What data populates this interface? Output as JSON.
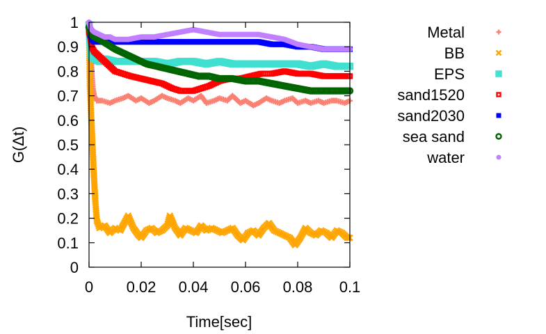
{
  "chart_data": {
    "type": "scatter",
    "title": "",
    "xlabel": "Time[sec]",
    "ylabel": "G(Δt)",
    "xlim": [
      0,
      0.1
    ],
    "ylim": [
      0,
      1
    ],
    "x_ticks": [
      0,
      0.02,
      0.04,
      0.06,
      0.08,
      0.1
    ],
    "x_tick_labels": [
      "0",
      "0.02",
      "0.04",
      "0.06",
      "0.08",
      "0.1"
    ],
    "y_ticks": [
      0,
      0.1,
      0.2,
      0.3,
      0.4,
      0.5,
      0.6,
      0.7,
      0.8,
      0.9,
      1
    ],
    "y_tick_labels": [
      "0",
      "0.1",
      "0.2",
      "0.3",
      "0.4",
      "0.5",
      "0.6",
      "0.7",
      "0.8",
      "0.9",
      "1"
    ],
    "grid": false,
    "legend_position": "outside-right",
    "series": [
      {
        "name": "Metal",
        "color": "#fa8072",
        "marker": "plus",
        "x": [
          0,
          0.0003,
          0.0006,
          0.0009,
          0.0012,
          0.0015,
          0.002,
          0.003,
          0.005,
          0.008,
          0.01,
          0.013,
          0.015,
          0.018,
          0.02,
          0.023,
          0.025,
          0.028,
          0.03,
          0.033,
          0.035,
          0.038,
          0.04,
          0.043,
          0.045,
          0.048,
          0.05,
          0.053,
          0.055,
          0.058,
          0.06,
          0.063,
          0.065,
          0.068,
          0.07,
          0.073,
          0.075,
          0.078,
          0.08,
          0.083,
          0.085,
          0.088,
          0.09,
          0.093,
          0.095,
          0.098,
          0.1
        ],
        "y": [
          1.0,
          0.96,
          0.9,
          0.83,
          0.77,
          0.73,
          0.7,
          0.68,
          0.68,
          0.67,
          0.68,
          0.69,
          0.7,
          0.68,
          0.69,
          0.67,
          0.68,
          0.7,
          0.69,
          0.68,
          0.67,
          0.69,
          0.68,
          0.7,
          0.67,
          0.68,
          0.69,
          0.68,
          0.7,
          0.67,
          0.68,
          0.66,
          0.67,
          0.69,
          0.68,
          0.67,
          0.68,
          0.69,
          0.67,
          0.68,
          0.67,
          0.68,
          0.67,
          0.68,
          0.68,
          0.67,
          0.68
        ]
      },
      {
        "name": "BB",
        "color": "#ffa500",
        "marker": "cross",
        "x": [
          0,
          0.0003,
          0.0006,
          0.0009,
          0.0012,
          0.0015,
          0.0018,
          0.0021,
          0.0024,
          0.0027,
          0.003,
          0.004,
          0.006,
          0.008,
          0.01,
          0.012,
          0.014,
          0.015,
          0.017,
          0.019,
          0.02,
          0.022,
          0.024,
          0.026,
          0.028,
          0.03,
          0.031,
          0.033,
          0.035,
          0.037,
          0.039,
          0.041,
          0.043,
          0.045,
          0.047,
          0.049,
          0.051,
          0.053,
          0.055,
          0.057,
          0.059,
          0.061,
          0.063,
          0.065,
          0.067,
          0.069,
          0.071,
          0.073,
          0.075,
          0.077,
          0.079,
          0.081,
          0.083,
          0.085,
          0.087,
          0.089,
          0.091,
          0.093,
          0.095,
          0.097,
          0.099,
          0.1
        ],
        "y": [
          0.98,
          0.75,
          0.68,
          0.6,
          0.53,
          0.46,
          0.39,
          0.33,
          0.27,
          0.23,
          0.19,
          0.16,
          0.17,
          0.14,
          0.16,
          0.15,
          0.19,
          0.21,
          0.16,
          0.13,
          0.12,
          0.15,
          0.16,
          0.14,
          0.15,
          0.17,
          0.21,
          0.16,
          0.13,
          0.16,
          0.15,
          0.14,
          0.17,
          0.15,
          0.16,
          0.15,
          0.14,
          0.15,
          0.16,
          0.13,
          0.11,
          0.14,
          0.15,
          0.13,
          0.16,
          0.18,
          0.15,
          0.14,
          0.13,
          0.12,
          0.09,
          0.12,
          0.16,
          0.14,
          0.13,
          0.15,
          0.14,
          0.12,
          0.15,
          0.14,
          0.12,
          0.12
        ]
      },
      {
        "name": "EPS",
        "color": "#40e0d0",
        "marker": "box",
        "x": [
          0,
          0.0005,
          0.001,
          0.002,
          0.004,
          0.006,
          0.01,
          0.015,
          0.02,
          0.025,
          0.03,
          0.035,
          0.04,
          0.045,
          0.05,
          0.055,
          0.06,
          0.065,
          0.07,
          0.075,
          0.08,
          0.085,
          0.09,
          0.095,
          0.1
        ],
        "y": [
          0.99,
          0.9,
          0.86,
          0.85,
          0.84,
          0.85,
          0.84,
          0.84,
          0.84,
          0.84,
          0.83,
          0.84,
          0.84,
          0.83,
          0.84,
          0.83,
          0.83,
          0.83,
          0.83,
          0.83,
          0.83,
          0.82,
          0.83,
          0.82,
          0.82
        ]
      },
      {
        "name": "sand1520",
        "color": "#ff0000",
        "marker": "square",
        "x": [
          0,
          0.0005,
          0.001,
          0.002,
          0.004,
          0.006,
          0.008,
          0.01,
          0.013,
          0.016,
          0.02,
          0.024,
          0.028,
          0.032,
          0.035,
          0.038,
          0.04,
          0.043,
          0.046,
          0.05,
          0.054,
          0.058,
          0.062,
          0.066,
          0.07,
          0.075,
          0.08,
          0.085,
          0.09,
          0.095,
          0.1
        ],
        "y": [
          0.96,
          0.94,
          0.9,
          0.88,
          0.86,
          0.84,
          0.82,
          0.8,
          0.79,
          0.78,
          0.77,
          0.76,
          0.75,
          0.73,
          0.72,
          0.72,
          0.72,
          0.73,
          0.74,
          0.76,
          0.77,
          0.77,
          0.78,
          0.79,
          0.79,
          0.8,
          0.79,
          0.79,
          0.78,
          0.78,
          0.78
        ]
      },
      {
        "name": "sand2030",
        "color": "#0000ff",
        "marker": "filled-square",
        "x": [
          0,
          0.0005,
          0.001,
          0.002,
          0.004,
          0.006,
          0.01,
          0.015,
          0.02,
          0.025,
          0.03,
          0.035,
          0.04,
          0.045,
          0.05,
          0.055,
          0.06,
          0.065,
          0.07,
          0.075,
          0.08,
          0.085,
          0.09,
          0.095,
          0.1
        ],
        "y": [
          0.98,
          0.95,
          0.93,
          0.92,
          0.92,
          0.92,
          0.92,
          0.92,
          0.92,
          0.92,
          0.92,
          0.92,
          0.92,
          0.92,
          0.92,
          0.92,
          0.92,
          0.92,
          0.91,
          0.91,
          0.9,
          0.9,
          0.89,
          0.89,
          0.89
        ]
      },
      {
        "name": "sea sand",
        "color": "#006400",
        "marker": "circle",
        "x": [
          0,
          0.0005,
          0.001,
          0.002,
          0.004,
          0.007,
          0.01,
          0.014,
          0.018,
          0.022,
          0.026,
          0.03,
          0.034,
          0.038,
          0.042,
          0.046,
          0.05,
          0.055,
          0.06,
          0.065,
          0.07,
          0.075,
          0.08,
          0.085,
          0.09,
          0.095,
          0.1
        ],
        "y": [
          0.98,
          0.96,
          0.95,
          0.94,
          0.93,
          0.91,
          0.89,
          0.87,
          0.85,
          0.83,
          0.82,
          0.81,
          0.8,
          0.79,
          0.78,
          0.78,
          0.77,
          0.77,
          0.76,
          0.76,
          0.75,
          0.74,
          0.73,
          0.72,
          0.72,
          0.72,
          0.72
        ]
      },
      {
        "name": "water",
        "color": "#c080ff",
        "marker": "filled-circle",
        "x": [
          0,
          0.0005,
          0.001,
          0.002,
          0.004,
          0.006,
          0.008,
          0.01,
          0.015,
          0.02,
          0.025,
          0.03,
          0.035,
          0.04,
          0.045,
          0.05,
          0.055,
          0.06,
          0.065,
          0.07,
          0.075,
          0.08,
          0.085,
          0.09,
          0.095,
          0.1
        ],
        "y": [
          1.0,
          0.98,
          0.97,
          0.96,
          0.95,
          0.94,
          0.94,
          0.93,
          0.93,
          0.94,
          0.94,
          0.95,
          0.96,
          0.97,
          0.96,
          0.95,
          0.95,
          0.95,
          0.95,
          0.94,
          0.93,
          0.91,
          0.9,
          0.89,
          0.89,
          0.89
        ]
      }
    ]
  }
}
